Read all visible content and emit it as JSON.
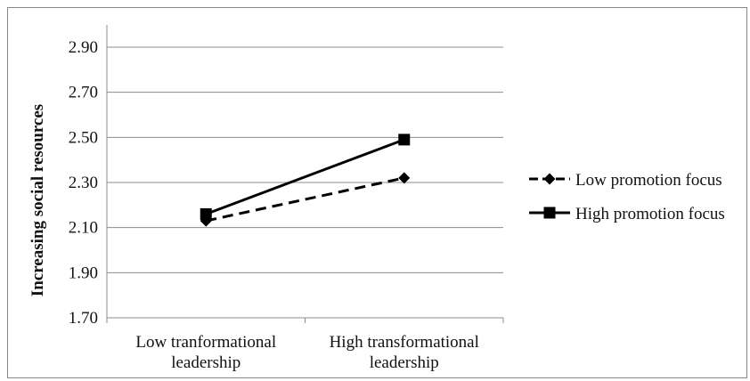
{
  "chart_data": {
    "type": "line",
    "title": "",
    "xlabel": "",
    "ylabel": "Increasing social resources",
    "categories": [
      [
        "Low tranformational",
        "leadership"
      ],
      [
        "High transformational",
        "leadership"
      ]
    ],
    "ylim": [
      1.7,
      2.9
    ],
    "yticks": [
      "2.90",
      "2.70",
      "2.50",
      "2.30",
      "2.10",
      "1.90",
      "1.70"
    ],
    "grid": true,
    "legend_position": "right",
    "series": [
      {
        "name": "Low promotion focus",
        "values": [
          2.13,
          2.32
        ],
        "line_style": "dashed",
        "marker": "diamond",
        "color": "#000000"
      },
      {
        "name": "High promotion focus",
        "values": [
          2.16,
          2.49
        ],
        "line_style": "solid",
        "marker": "square",
        "color": "#000000"
      }
    ]
  }
}
